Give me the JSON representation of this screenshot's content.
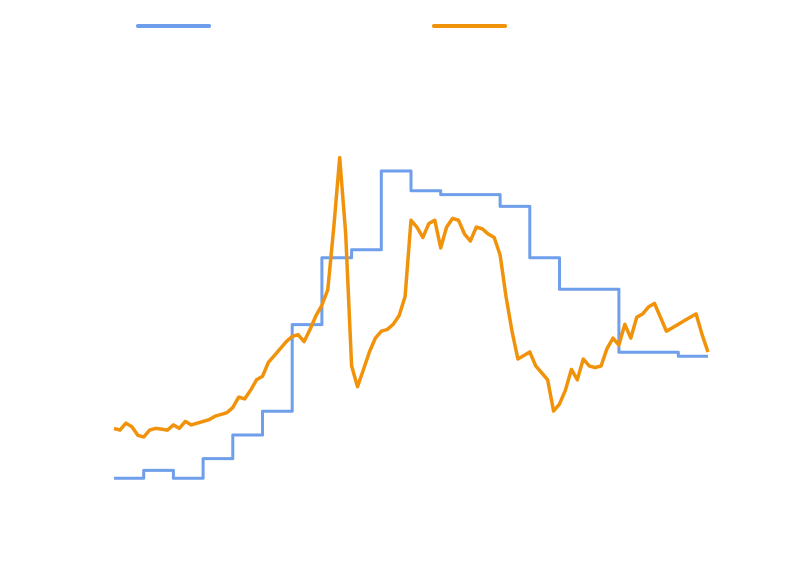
{
  "chart_data": {
    "type": "line",
    "title": "",
    "xlabel": "",
    "ylabel": "",
    "grid": false,
    "legend_position": "top",
    "xlim": [
      0,
      100
    ],
    "ylim": [
      0,
      100
    ],
    "x": [
      0,
      1,
      2,
      3,
      4,
      5,
      6,
      7,
      8,
      9,
      10,
      11,
      12,
      13,
      14,
      15,
      16,
      17,
      18,
      19,
      20,
      21,
      22,
      23,
      24,
      25,
      26,
      27,
      28,
      29,
      30,
      31,
      32,
      33,
      34,
      35,
      36,
      37,
      38,
      39,
      40,
      41,
      42,
      43,
      44,
      45,
      46,
      47,
      48,
      49,
      50,
      51,
      52,
      53,
      54,
      55,
      56,
      57,
      58,
      59,
      60,
      61,
      62,
      63,
      64,
      65,
      66,
      67,
      68,
      69,
      70,
      71,
      72,
      73,
      74,
      75,
      76,
      77,
      78,
      79,
      80,
      81,
      82,
      83,
      84,
      85,
      86,
      87,
      88,
      89,
      90,
      91,
      92,
      93,
      94,
      95,
      96,
      97,
      98,
      99,
      100
    ],
    "series": [
      {
        "name": "",
        "color": "#6f9eea",
        "values": [
          5,
          5,
          5,
          5,
          5,
          7,
          7,
          7,
          7,
          7,
          5,
          5,
          5,
          5,
          5,
          10,
          10,
          10,
          10,
          10,
          16,
          16,
          16,
          16,
          16,
          22,
          22,
          22,
          22,
          22,
          44,
          44,
          44,
          44,
          44,
          61,
          61,
          61,
          61,
          61,
          63,
          63,
          63,
          63,
          63,
          83,
          83,
          83,
          83,
          83,
          78,
          78,
          78,
          78,
          78,
          77,
          77,
          77,
          77,
          77,
          77,
          77,
          77,
          77,
          77,
          74,
          74,
          74,
          74,
          74,
          61,
          61,
          61,
          61,
          61,
          53,
          53,
          53,
          53,
          53,
          53,
          53,
          53,
          53,
          53,
          37,
          37,
          37,
          37,
          37,
          37,
          37,
          37,
          37,
          37,
          36,
          36,
          36,
          36,
          36,
          36
        ]
      },
      {
        "name": "",
        "color": "#f0930b",
        "values": [
          12.0,
          11.5,
          13.5,
          12.5,
          10.0,
          9.5,
          11.5,
          12.0,
          11.8,
          11.5,
          13.0,
          12.0,
          14.0,
          13.0,
          13.5,
          14.0,
          14.5,
          15.5,
          16.0,
          16.5,
          18.0,
          21.0,
          20.5,
          23.0,
          26.0,
          27.0,
          31.0,
          33.0,
          35.0,
          37.0,
          38.5,
          39.0,
          37.0,
          40.5,
          44.5,
          47.5,
          52.0,
          70.0,
          90.0,
          68.0,
          30.0,
          24.0,
          29.0,
          34.0,
          38.0,
          40.0,
          40.5,
          42.0,
          44.5,
          50.0,
          72.0,
          70.0,
          67.0,
          71.0,
          72.0,
          64.0,
          70.0,
          72.5,
          72.0,
          68.0,
          66.0,
          70.0,
          69.5,
          68.0,
          67.0,
          62.0,
          50.0,
          40.0,
          32.0,
          33.0,
          34.0,
          30.0,
          28.0,
          26.0,
          17.0,
          19.0,
          23.0,
          29.0,
          26.0,
          32.0,
          30.0,
          29.5,
          30.0,
          35.0,
          38.0,
          36.0,
          42.0,
          38.0,
          44.0,
          45.0,
          47.0,
          48.0,
          44.0,
          40.0,
          41.0,
          42.0,
          43.0,
          44.0,
          45.0,
          39.0,
          34.0
        ]
      }
    ]
  }
}
